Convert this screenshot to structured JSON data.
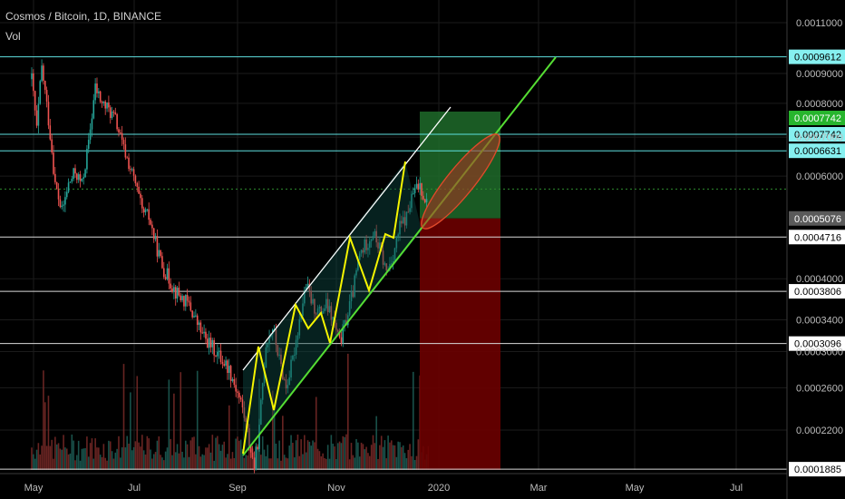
{
  "header": {
    "title": "Cosmos / Bitcoin, 1D, BINANCE",
    "vol_label": "Vol"
  },
  "colors": {
    "background": "#000000",
    "up_candle": "#26a69a",
    "down_candle": "#ef5350",
    "channel_line": "#55dd33",
    "upper_channel": "#ffffff",
    "zigzag": "#f5f500",
    "level_cyan": "#5fe0e0",
    "level_gray": "#d9d9d9",
    "target_zone": "#1f6b2a",
    "stop_zone": "#6b0000",
    "ellipse": "#b03020"
  },
  "chart_data": {
    "type": "candlestick",
    "ylim": [
      0.00018,
      0.00115
    ],
    "y_ticks": [
      {
        "label": "0.0011000",
        "value": 0.0011
      },
      {
        "label": "0.0009000",
        "value": 0.0009
      },
      {
        "label": "0.0008000",
        "value": 0.0008
      },
      {
        "label": "0.0007000",
        "value": 0.0007
      },
      {
        "label": "0.0006000",
        "value": 0.0006
      },
      {
        "label": "0.0004000",
        "value": 0.0004
      },
      {
        "label": "0.0003400",
        "value": 0.00034
      },
      {
        "label": "0.0003000",
        "value": 0.0003
      },
      {
        "label": "0.0002600",
        "value": 0.00026
      },
      {
        "label": "0.0002200",
        "value": 0.00022
      }
    ],
    "x_ticks": [
      "May",
      "Jul",
      "Sep",
      "Nov",
      "2020",
      "Mar",
      "May",
      "Jul"
    ],
    "price_levels": [
      {
        "label": "0.0009612",
        "value": 0.0009612,
        "style": "cyan"
      },
      {
        "label": "0.0007742",
        "value": 0.0007742,
        "style": "green-tag"
      },
      {
        "label": "0.0007742",
        "value": 0.0007742,
        "style": "cyan"
      },
      {
        "label": "0.0006631",
        "value": 0.0006631,
        "style": "cyan"
      },
      {
        "label": "0.0005076",
        "value": 0.0005076,
        "style": "gray-tag"
      },
      {
        "label": "0.0004716",
        "value": 0.0004716,
        "style": "white"
      },
      {
        "label": "0.0003806",
        "value": 0.0003806,
        "style": "white"
      },
      {
        "label": "0.0003096",
        "value": 0.0003096,
        "style": "white"
      },
      {
        "label": "0.0001885",
        "value": 0.0001885,
        "style": "white"
      }
    ],
    "close_path": [
      [
        0,
        0.00088
      ],
      [
        3,
        0.00072
      ],
      [
        6,
        0.00092
      ],
      [
        10,
        0.00075
      ],
      [
        14,
        0.00058
      ],
      [
        18,
        0.00052
      ],
      [
        22,
        0.00058
      ],
      [
        26,
        0.00061
      ],
      [
        30,
        0.00058
      ],
      [
        34,
        0.00068
      ],
      [
        38,
        0.00085
      ],
      [
        42,
        0.0008
      ],
      [
        46,
        0.00078
      ],
      [
        50,
        0.00075
      ],
      [
        54,
        0.00068
      ],
      [
        58,
        0.00063
      ],
      [
        62,
        0.00058
      ],
      [
        66,
        0.00052
      ],
      [
        70,
        0.00051
      ],
      [
        74,
        0.00046
      ],
      [
        78,
        0.00042
      ],
      [
        82,
        0.0004
      ],
      [
        86,
        0.00038
      ],
      [
        90,
        0.00037
      ],
      [
        94,
        0.00036
      ],
      [
        98,
        0.00034
      ],
      [
        102,
        0.00032
      ],
      [
        106,
        0.00031
      ],
      [
        110,
        0.0003
      ],
      [
        114,
        0.00029
      ],
      [
        118,
        0.00028
      ],
      [
        122,
        0.00026
      ],
      [
        126,
        0.00024
      ],
      [
        130,
        0.00021
      ],
      [
        133,
        0.00019
      ],
      [
        136,
        0.00022
      ],
      [
        140,
        0.00031
      ],
      [
        144,
        0.00033
      ],
      [
        148,
        0.00029
      ],
      [
        152,
        0.00026
      ],
      [
        156,
        0.00029
      ],
      [
        160,
        0.00034
      ],
      [
        164,
        0.00039
      ],
      [
        168,
        0.00036
      ],
      [
        172,
        0.00035
      ],
      [
        176,
        0.00036
      ],
      [
        180,
        0.00034
      ],
      [
        184,
        0.00031
      ],
      [
        188,
        0.00034
      ],
      [
        192,
        0.00038
      ],
      [
        196,
        0.00044
      ],
      [
        200,
        0.00046
      ],
      [
        204,
        0.00048
      ],
      [
        208,
        0.00045
      ],
      [
        212,
        0.00041
      ],
      [
        216,
        0.00044
      ],
      [
        220,
        0.00049
      ],
      [
        224,
        0.00051
      ],
      [
        228,
        0.00056
      ],
      [
        232,
        0.00058
      ],
      [
        236,
        0.00054
      ]
    ]
  }
}
